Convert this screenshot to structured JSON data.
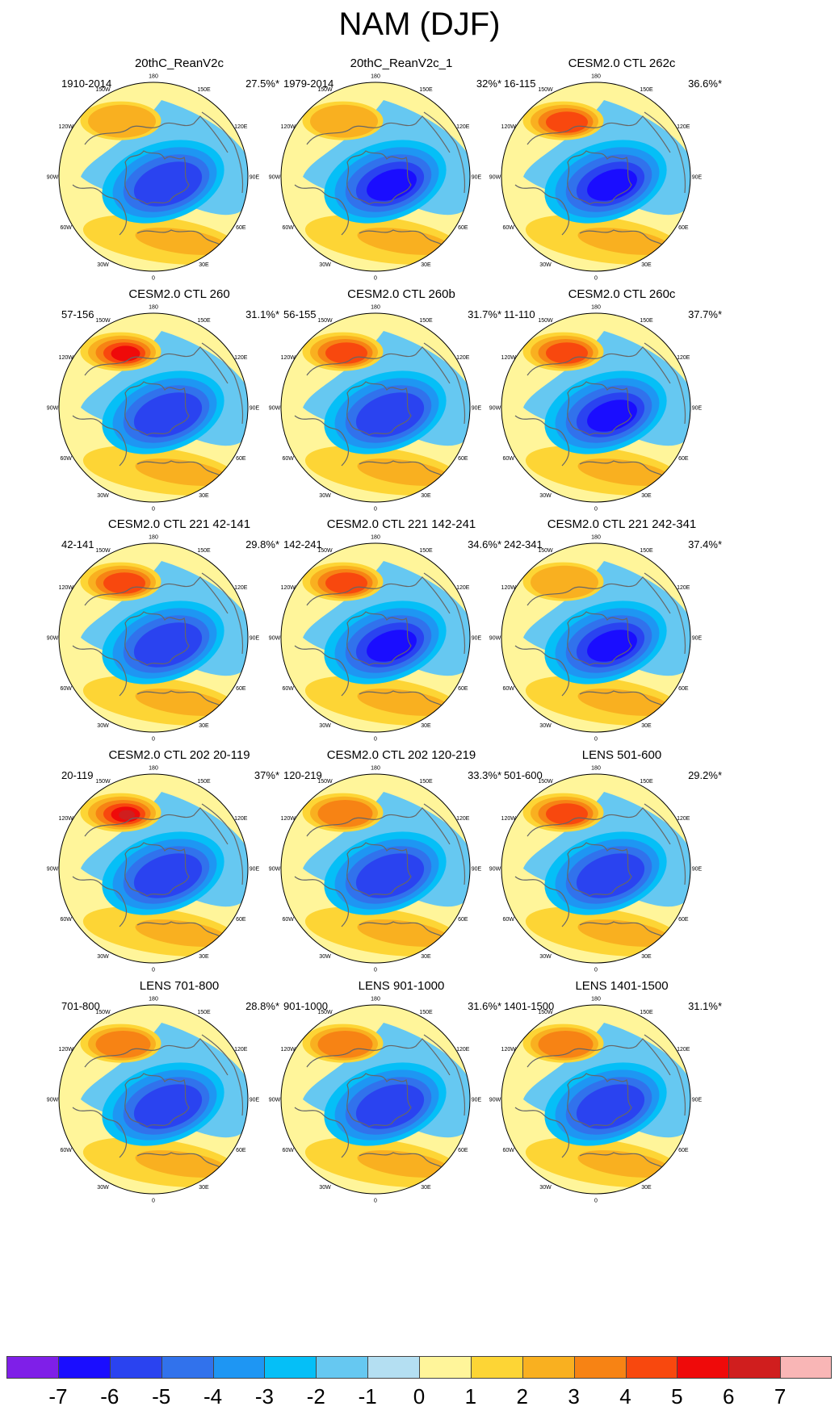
{
  "title": "NAM (DJF)",
  "colors": {
    "coast": "#666666",
    "bg_positive": "#fff59a"
  },
  "lon_labels": [
    "180",
    "150E",
    "120E",
    "90E",
    "60E",
    "30E",
    "0",
    "30W",
    "60W",
    "90W",
    "120W",
    "150W"
  ],
  "panels": [
    {
      "title": "20thC_ReanV2c",
      "period": "1910-2014",
      "percent": "27.5%*",
      "pos": 2,
      "neg": 4
    },
    {
      "title": "20thC_ReanV2c_1",
      "period": "1979-2014",
      "percent": "32%*",
      "pos": 2,
      "neg": 5
    },
    {
      "title": "CESM2.0 CTL 262c",
      "period": "16-115",
      "percent": "36.6%*",
      "pos": 4,
      "neg": 5
    },
    {
      "title": "CESM2.0 CTL 260",
      "period": "57-156",
      "percent": "31.1%*",
      "pos": 5,
      "neg": 4
    },
    {
      "title": "CESM2.0 CTL 260b",
      "period": "56-155",
      "percent": "31.7%*",
      "pos": 4,
      "neg": 4
    },
    {
      "title": "CESM2.0 CTL 260c",
      "period": "11-110",
      "percent": "37.7%*",
      "pos": 4,
      "neg": 5
    },
    {
      "title": "CESM2.0 CTL 221 42-141",
      "period": "42-141",
      "percent": "29.8%*",
      "pos": 4,
      "neg": 4
    },
    {
      "title": "CESM2.0 CTL 221 142-241",
      "period": "142-241",
      "percent": "34.6%*",
      "pos": 4,
      "neg": 5
    },
    {
      "title": "CESM2.0 CTL 221 242-341",
      "period": "242-341",
      "percent": "37.4%*",
      "pos": 2,
      "neg": 5
    },
    {
      "title": "CESM2.0 CTL 202 20-119",
      "period": "20-119",
      "percent": "37%*",
      "pos": 6,
      "neg": 4
    },
    {
      "title": "CESM2.0 CTL 202 120-219",
      "period": "120-219",
      "percent": "33.3%*",
      "pos": 3,
      "neg": 4
    },
    {
      "title": "LENS 501-600",
      "period": "501-600",
      "percent": "29.2%*",
      "pos": 4,
      "neg": 4
    },
    {
      "title": "LENS 701-800",
      "period": "701-800",
      "percent": "28.8%*",
      "pos": 3,
      "neg": 4
    },
    {
      "title": "LENS 901-1000",
      "period": "901-1000",
      "percent": "31.6%*",
      "pos": 3,
      "neg": 4
    },
    {
      "title": "LENS 1401-1500",
      "period": "1401-1500",
      "percent": "31.1%*",
      "pos": 3,
      "neg": 4
    }
  ],
  "colorbar": {
    "colors": [
      "#7f1fe8",
      "#1a0dff",
      "#2a43f0",
      "#3172ec",
      "#1e96f3",
      "#05bff7",
      "#66c8f1",
      "#b4dff2",
      "#fff59a",
      "#fdd535",
      "#f9b020",
      "#f78314",
      "#f8480e",
      "#ef0a0a",
      "#d01e1e",
      "#f9b6b6"
    ],
    "labels": [
      "-7",
      "-6",
      "-5",
      "-4",
      "-3",
      "-2",
      "-1",
      "0",
      "1",
      "2",
      "3",
      "4",
      "5",
      "6",
      "7"
    ]
  }
}
